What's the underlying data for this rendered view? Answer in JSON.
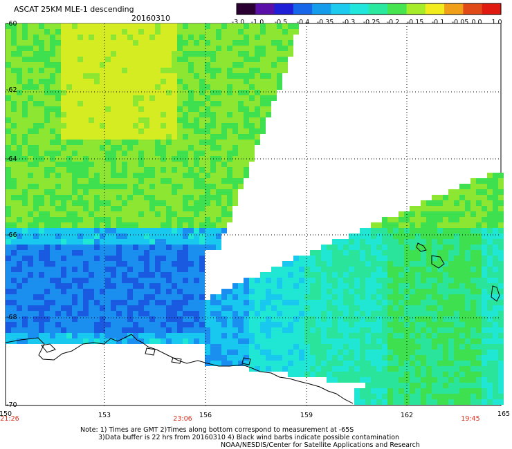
{
  "header": {
    "product": "ASCAT 25KM MLE-1 descending",
    "date": "20160310"
  },
  "colorbar": {
    "ticks": [
      "-3.0",
      "-1.0",
      "-0.5",
      "-0.4",
      "-0.35",
      "-0.3",
      "-0.25",
      "-0.2",
      "-0.15",
      "-0.1",
      "-0.05",
      "0.0",
      "1.0"
    ],
    "colors": [
      "#2a0033",
      "#5a0fa8",
      "#1f1fd8",
      "#1765e8",
      "#159cea",
      "#1ccbed",
      "#21e6dc",
      "#2ae89e",
      "#46e44e",
      "#a6ec2a",
      "#f2ec1e",
      "#f0a018",
      "#e04a18",
      "#e01a10"
    ]
  },
  "map": {
    "lat_labels": [
      "-60",
      "-62",
      "-64",
      "-66",
      "-68",
      "-70"
    ],
    "lon_labels": [
      "150",
      "153",
      "156",
      "159",
      "162",
      "165"
    ],
    "time_labels": [
      "21:26",
      "23:06",
      "19:45"
    ]
  },
  "notes": [
    "Note: 1) Times are GMT 2)Times along bottom correspond to measurement at -65S",
    "3)Data buffer is 22 hrs from 20160310 4) Black wind barbs indicate possible contamination",
    "NOAA/NESDIS/Center for Satellite Applications and Research"
  ]
}
